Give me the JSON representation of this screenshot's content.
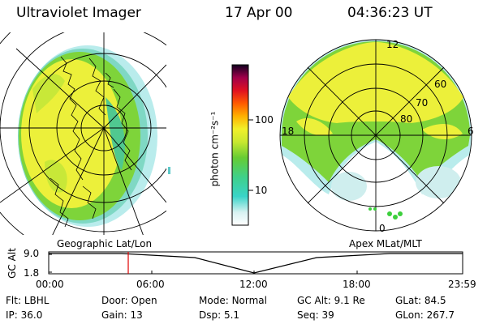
{
  "header": {
    "instrument": "Ultraviolet Imager",
    "date": "17 Apr 00",
    "time": "04:36:23 UT"
  },
  "colorbar": {
    "unit_label": "photon cm⁻²s⁻¹",
    "ticks": [
      "100",
      "10"
    ]
  },
  "polar_plot": {
    "mlt_labels": [
      "12",
      "18",
      "6",
      "0"
    ],
    "lat_labels": [
      "60",
      "70",
      "80"
    ]
  },
  "timeline": {
    "ylabel": "GC Alt",
    "left_caption": "Geographic Lat/Lon",
    "right_caption": "Apex MLat/MLT",
    "y_ticks": [
      "9.0",
      "1.8"
    ],
    "x_ticks": [
      "00:00",
      "06:00",
      "12:00",
      "18:00",
      "23:59"
    ],
    "marker_color": "#e00000"
  },
  "footer": {
    "row1": [
      {
        "label": "Flt:",
        "value": "LBHL"
      },
      {
        "label": "Door:",
        "value": "Open"
      },
      {
        "label": "Mode:",
        "value": "Normal"
      },
      {
        "label": "GC Alt:",
        "value": "9.1 Re"
      },
      {
        "label": "GLat:",
        "value": "84.5"
      }
    ],
    "row2": [
      {
        "label": "IP:",
        "value": "36.0"
      },
      {
        "label": "Gain:",
        "value": "13"
      },
      {
        "label": "Dsp:",
        "value": "5.1"
      },
      {
        "label": "Seq:",
        "value": "39"
      },
      {
        "label": "GLon:",
        "value": "267.7"
      }
    ]
  },
  "colors": {
    "aurora_yellow": "#ecf03a",
    "aurora_green": "#7ed43a",
    "aurora_cyan": "#33d8d0",
    "cyan_light": "#b7ecec"
  }
}
